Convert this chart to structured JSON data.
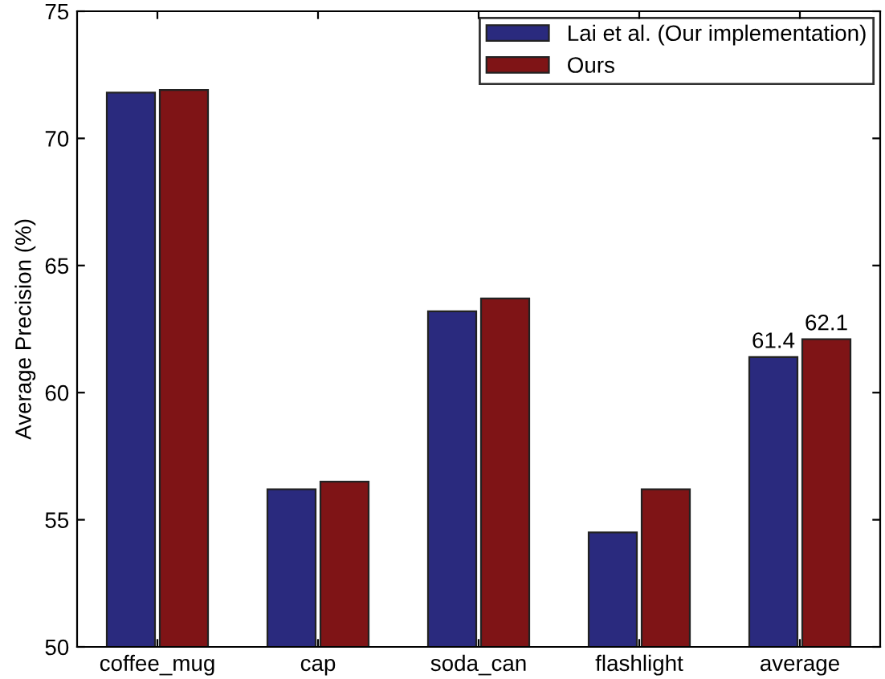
{
  "chart_data": {
    "type": "bar",
    "ylabel": "Average Precision (%)",
    "categories": [
      "coffee_mug",
      "cap",
      "soda_can",
      "flashlight",
      "average"
    ],
    "series": [
      {
        "name": "Lai et al. (Our implementation)",
        "color": "#2a2a7e",
        "values": [
          71.8,
          56.2,
          63.2,
          54.5,
          61.4
        ],
        "value_labels": [
          null,
          null,
          null,
          null,
          "61.4"
        ]
      },
      {
        "name": "Ours",
        "color": "#7f1416",
        "values": [
          71.9,
          56.5,
          63.7,
          56.2,
          62.1
        ],
        "value_labels": [
          null,
          null,
          null,
          null,
          "62.1"
        ]
      }
    ],
    "ylim": [
      50,
      75
    ],
    "yticks": [
      50,
      55,
      60,
      65,
      70,
      75
    ],
    "grid": false,
    "legend": "top right"
  }
}
